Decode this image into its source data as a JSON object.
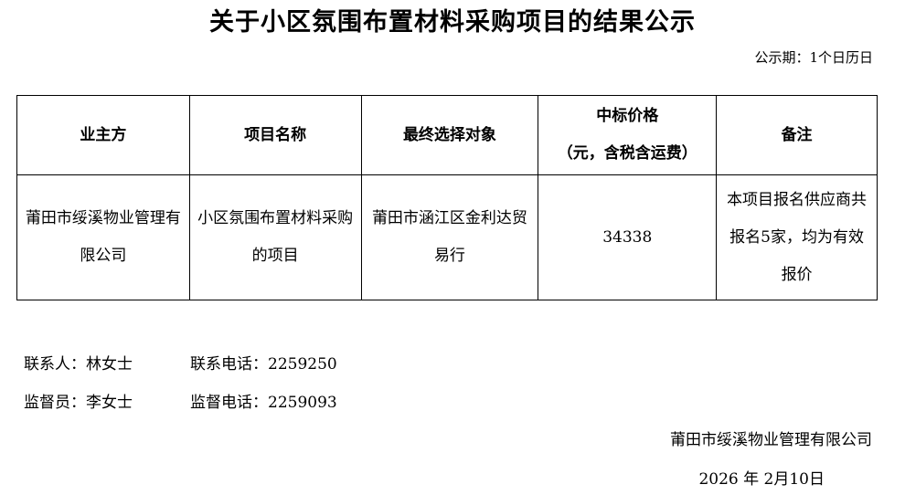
{
  "title": "关于小区氛围布置材料采购项目的结果公示",
  "period": "公示期：1个日历日",
  "table": {
    "headers": [
      "业主方",
      "项目名称",
      "最终选择对象",
      "中标价格（元，含税含运费）",
      "备注"
    ],
    "header_lines": {
      "price_1": "中标价格",
      "price_2": "（元，含税含运费）"
    },
    "row": [
      "莆田市绥溪物业管理有限公司",
      "小区氛围布置材料采购的项目",
      "莆田市涵江区金利达贸易行",
      "34338",
      "本项目报名供应商共报名5家，均为有效报价"
    ]
  },
  "contact": {
    "person": "联系人：林女士",
    "phone": "联系电话：2259250"
  },
  "supervisor": {
    "person": "监督员：李女士",
    "phone": "监督电话：2259093"
  },
  "signature": {
    "company": "莆田市绥溪物业管理有限公司",
    "date": "2026 年 2月10日"
  }
}
